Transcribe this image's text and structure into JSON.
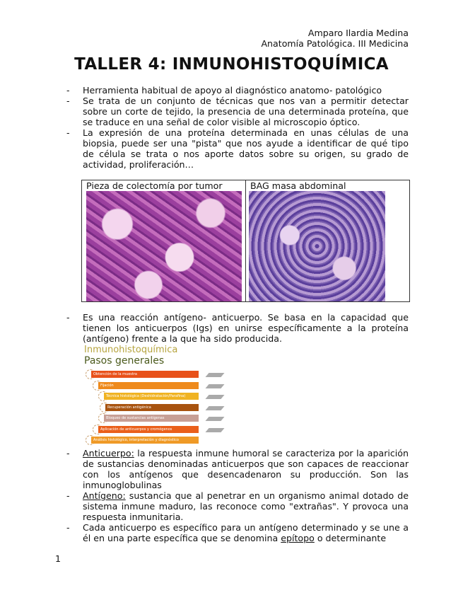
{
  "header": {
    "author": "Amparo Ilardia Medina",
    "subject": "Anatomía Patológica. III Medicina"
  },
  "title": "TALLER 4: INMUNOHISTOQUÍMICA",
  "bullets1": [
    "Herramienta habitual de apoyo al diagnóstico anatomo- patológico",
    "Se trata de un conjunto de técnicas que nos van a permitir detectar sobre un corte de tejido, la presencia de una determinada proteína, que se traduce en una señal de color visible al microscopio óptico.",
    "La expresión de una proteína determinada en unas células de una biopsia, puede ser una \"pista\" que nos ayude a identificar de qué tipo de célula se trata o nos aporte datos sobre su origen, su grado de actividad, proliferación…"
  ],
  "table": {
    "left_caption": "Pieza de colectomía por tumor",
    "right_caption": "BAG masa abdominal"
  },
  "bullet2": "Es una reacción antígeno- anticuerpo. Se basa en la capacidad que tienen los anticuerpos (Igs) en unirse específicamente a la proteína (antígeno) frente a la que ha sido producida.",
  "diagram": {
    "title": "Inmunohistoquímica",
    "subtitle": "Pasos generales",
    "steps": [
      {
        "label": "Obtención de la muestra",
        "color": "#e8511a"
      },
      {
        "label": "Fijación",
        "color": "#ee8a1c"
      },
      {
        "label": "Técnica histológica (Deshidratación/Parafina)",
        "color": "#f0b323"
      },
      {
        "label": "Recuperación antigénica",
        "color": "#a8530f"
      },
      {
        "label": "Bloqueo de sustancias antígenas",
        "color": "#c79f95"
      },
      {
        "label": "Aplicación de anticuerpos y cromógenos",
        "color": "#ea5f1a"
      },
      {
        "label": "Análisis histológico, interpretación y diagnóstico",
        "color": "#ef9a27"
      }
    ]
  },
  "bullets3": [
    {
      "term": "Anticuerpo:",
      "text": " la respuesta inmune humoral se caracteriza por la aparición de sustancias denominadas anticuerpos que son capaces de reaccionar con los antígenos que desencadenaron su producción. Son las inmunoglobulinas"
    },
    {
      "term": "Antígeno:",
      "text": " sustancia que al penetrar en un organismo animal dotado de sistema inmune maduro, las reconoce como \"extrañas\". Y provoca una respuesta inmunitaria."
    },
    {
      "pre": "Cada anticuerpo es específico para un antígeno determinado y se une a él en una parte específica que se denomina ",
      "term": "epítopo",
      "text": " o determinante"
    }
  ],
  "page_number": "1"
}
